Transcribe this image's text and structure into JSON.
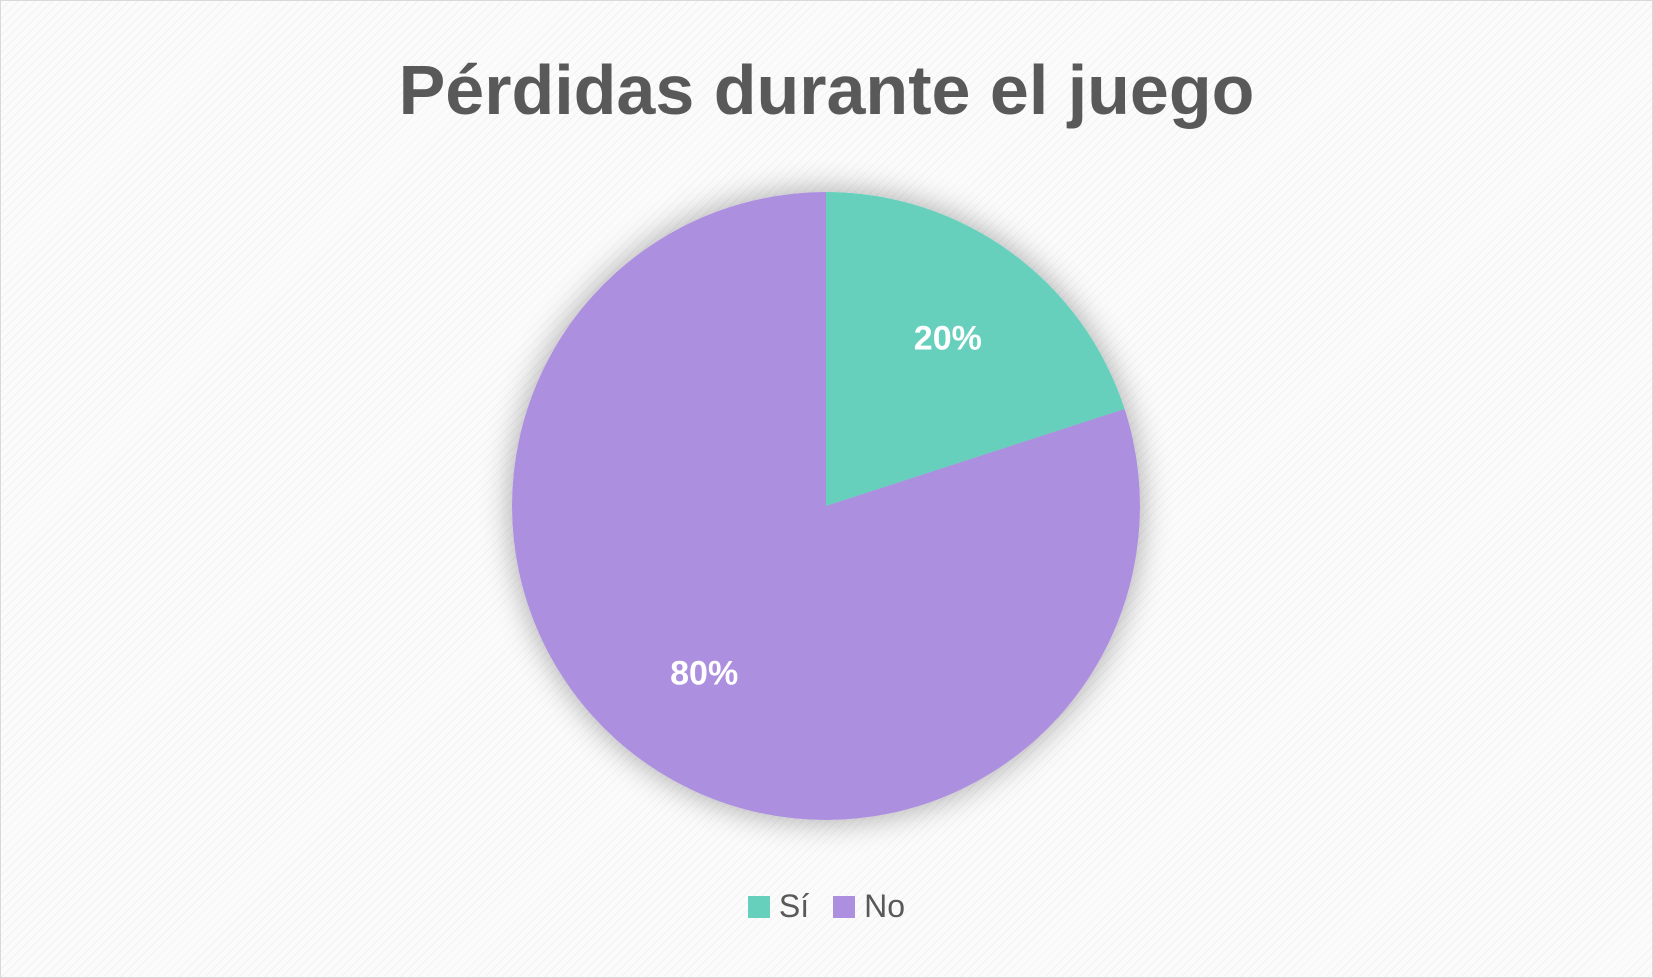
{
  "chart_data": {
    "type": "pie",
    "title": "Pérdidas durante el juego",
    "categories": [
      "Sí",
      "No"
    ],
    "values": [
      20,
      80
    ],
    "labels": [
      "20%",
      "80%"
    ],
    "colors": [
      "#66d0bd",
      "#ad8fdf"
    ],
    "legend_position": "bottom",
    "start_angle": "12 o'clock",
    "direction": "clockwise"
  },
  "colors": {
    "title": "#595959",
    "legend_text": "#595959",
    "data_label": "#ffffff"
  }
}
